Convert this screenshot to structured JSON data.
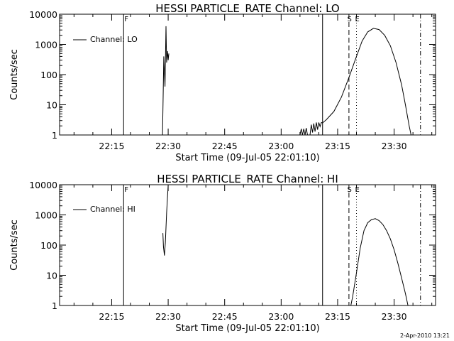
{
  "page": {
    "timestamp": "2-Apr-2010 13:21"
  },
  "chart_data": [
    {
      "type": "line",
      "title": "HESSI PARTICLE_RATE Channel: LO",
      "xlabel": "Start Time (09-Jul-05 22:01:10)",
      "ylabel": "Counts/sec",
      "yscale": "log",
      "ylim": [
        1,
        10000
      ],
      "xlim": [
        "22:01:10",
        "23:41:00"
      ],
      "x_ticks": [
        "22:15",
        "22:30",
        "22:45",
        "23:00",
        "23:15",
        "23:30"
      ],
      "y_ticks": [
        "1",
        "10",
        "100",
        "1000",
        "10000"
      ],
      "legend": {
        "position": "top-left",
        "entry": "Channel: LO"
      },
      "markers": [
        {
          "label": "F",
          "time": "22:18:10",
          "style": "solid"
        },
        {
          "label": "",
          "time": "23:11:00",
          "style": "solid"
        },
        {
          "label": "S",
          "time": "23:18:00",
          "style": "dashed"
        },
        {
          "label": "E",
          "time": "23:20:00",
          "style": "dotted"
        },
        {
          "label": "",
          "time": "23:37:00",
          "style": "dash-dot"
        }
      ],
      "series": [
        {
          "segments": [
            [
              [
                "22:28:30",
                1
              ],
              [
                "22:28:50",
                400
              ],
              [
                "22:29:10",
                40
              ],
              [
                "22:29:25",
                4000
              ],
              [
                "22:29:35",
                250
              ],
              [
                "22:29:50",
                600
              ],
              [
                "22:30:00",
                300
              ],
              [
                "22:30:10",
                500
              ]
            ],
            [
              [
                "23:05:00",
                1
              ],
              [
                "23:05:20",
                1.6
              ],
              [
                "23:05:40",
                1
              ],
              [
                "23:06:00",
                1.6
              ],
              [
                "23:06:20",
                1
              ],
              [
                "23:06:40",
                1.7
              ],
              [
                "23:07:00",
                1
              ],
              [
                "23:07:40",
                1
              ],
              [
                "23:08:00",
                2.2
              ],
              [
                "23:08:20",
                1.2
              ],
              [
                "23:08:40",
                2.4
              ],
              [
                "23:09:00",
                1.3
              ],
              [
                "23:09:20",
                2.6
              ],
              [
                "23:09:40",
                1.5
              ],
              [
                "23:10:00",
                2.6
              ],
              [
                "23:10:20",
                1.9
              ],
              [
                "23:10:40",
                2.6
              ],
              [
                "23:11:00",
                2.5
              ],
              [
                "23:12:00",
                3.2
              ],
              [
                "23:14:00",
                6
              ],
              [
                "23:16:00",
                18
              ],
              [
                "23:18:00",
                80
              ],
              [
                "23:20:00",
                400
              ],
              [
                "23:21:30",
                1300
              ],
              [
                "23:23:00",
                2600
              ],
              [
                "23:24:30",
                3400
              ],
              [
                "23:26:00",
                3100
              ],
              [
                "23:27:30",
                2000
              ],
              [
                "23:29:00",
                900
              ],
              [
                "23:30:30",
                250
              ],
              [
                "23:32:00",
                45
              ],
              [
                "23:33:00",
                10
              ],
              [
                "23:34:00",
                2
              ],
              [
                "23:34:30",
                1
              ]
            ]
          ]
        }
      ]
    },
    {
      "type": "line",
      "title": "HESSI PARTICLE_RATE Channel: HI",
      "xlabel": "Start Time (09-Jul-05 22:01:10)",
      "ylabel": "Counts/sec",
      "yscale": "log",
      "ylim": [
        1,
        10000
      ],
      "xlim": [
        "22:01:10",
        "23:41:00"
      ],
      "x_ticks": [
        "22:15",
        "22:30",
        "22:45",
        "23:00",
        "23:15",
        "23:30"
      ],
      "y_ticks": [
        "1",
        "10",
        "100",
        "1000",
        "10000"
      ],
      "legend": {
        "position": "top-left",
        "entry": "Channel: HI"
      },
      "markers": [
        {
          "label": "F",
          "time": "22:18:10",
          "style": "solid"
        },
        {
          "label": "",
          "time": "23:11:00",
          "style": "solid"
        },
        {
          "label": "S",
          "time": "23:18:00",
          "style": "dashed"
        },
        {
          "label": "E",
          "time": "23:20:00",
          "style": "dotted"
        },
        {
          "label": "",
          "time": "23:37:00",
          "style": "dash-dot"
        }
      ],
      "series": [
        {
          "segments": [
            [
              [
                "22:28:35",
                250
              ],
              [
                "22:28:45",
                90
              ],
              [
                "22:29:00",
                45
              ],
              [
                "22:29:15",
                120
              ],
              [
                "22:29:35",
                1200
              ],
              [
                "22:30:00",
                10000
              ]
            ],
            [
              [
                "23:18:30",
                1
              ],
              [
                "23:19:00",
                2
              ],
              [
                "23:20:00",
                12
              ],
              [
                "23:21:00",
                80
              ],
              [
                "23:22:00",
                300
              ],
              [
                "23:23:00",
                550
              ],
              [
                "23:24:00",
                700
              ],
              [
                "23:25:00",
                750
              ],
              [
                "23:26:00",
                650
              ],
              [
                "23:27:00",
                480
              ],
              [
                "23:28:00",
                300
              ],
              [
                "23:29:00",
                160
              ],
              [
                "23:30:00",
                70
              ],
              [
                "23:31:00",
                25
              ],
              [
                "23:32:00",
                8
              ],
              [
                "23:33:00",
                2.5
              ],
              [
                "23:33:40",
                1
              ]
            ]
          ]
        }
      ]
    }
  ]
}
